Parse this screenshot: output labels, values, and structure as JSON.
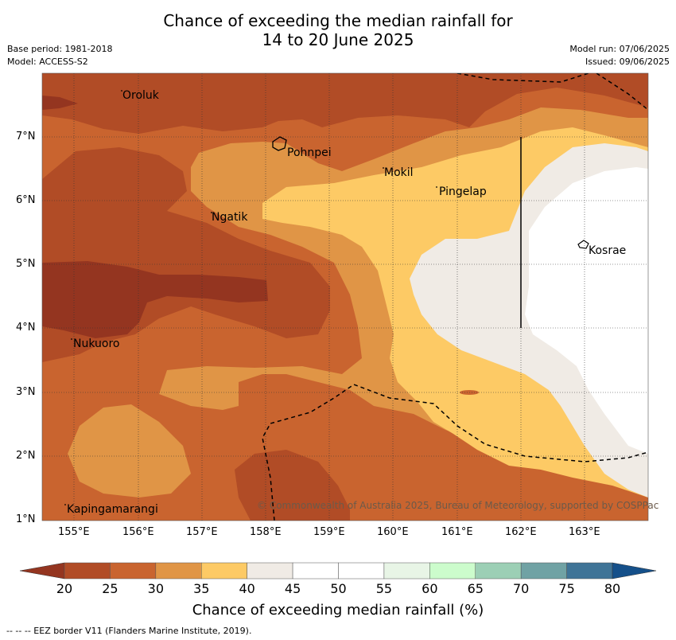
{
  "title": {
    "line1": "Chance of exceeding the median rainfall for",
    "line2": "14 to 20 June 2025"
  },
  "meta": {
    "base_period": "Base period: 1981-2018",
    "model": "Model: ACCESS-S2",
    "model_run": "Model run: 07/06/2025",
    "issued": "Issued: 09/06/2025"
  },
  "map": {
    "lat_labels": [
      "7°N",
      "6°N",
      "5°N",
      "4°N",
      "3°N",
      "2°N",
      "1°N"
    ],
    "lon_labels": [
      "155°E",
      "156°E",
      "157°E",
      "158°E",
      "159°E",
      "160°E",
      "161°E",
      "162°E",
      "163°E"
    ],
    "places": {
      "oroluk": "Oroluk",
      "pohnpei": "Pohnpei",
      "mokil": "Mokil",
      "pingelap": "Pingelap",
      "ngatik": "Ngatik",
      "kosrae": "Kosrae",
      "nukuoro": "Nukuoro",
      "kapingamarangi": "Kapingamarangi"
    },
    "copyright": "© Commonwealth of Australia 2025, Bureau of Meteorology, supported by COSPPac",
    "colors": {
      "c20": "#943520",
      "c25": "#b14c26",
      "c30": "#c9642f",
      "c35": "#e09546",
      "c40": "#fdca65",
      "c45": "#f0ebe5",
      "c50": "#ffffff"
    }
  },
  "colorbar": {
    "ticks": [
      "20",
      "25",
      "30",
      "35",
      "40",
      "45",
      "50",
      "55",
      "60",
      "65",
      "70",
      "75",
      "80"
    ],
    "colors": [
      "#b14c26",
      "#c9642f",
      "#e09546",
      "#fdca65",
      "#f0ebe5",
      "#ffffff",
      "#ffffff",
      "#e8f5e6",
      "#ccfccc",
      "#9ccfb5",
      "#70a2a4",
      "#3f7497"
    ],
    "under_color": "#943520",
    "over_color": "#15508a",
    "title": "Chance of exceeding median rainfall (%)"
  },
  "footnote": "-- -- -- EEZ border V11 (Flanders Marine Institute, 2019)."
}
